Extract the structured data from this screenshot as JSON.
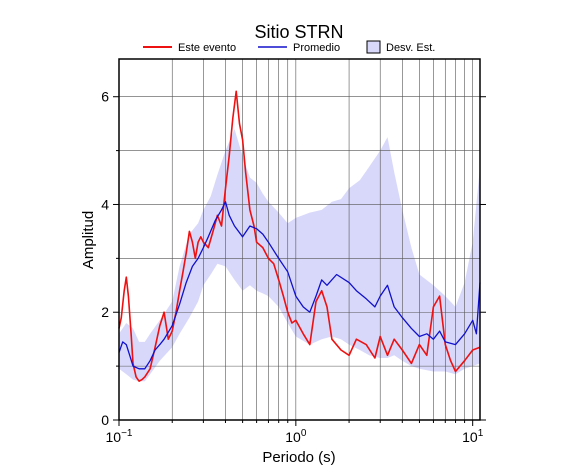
{
  "chart_data": {
    "type": "line",
    "title": "Sitio STRN",
    "xlabel": "Periodo (s)",
    "ylabel": "Amplitud",
    "x_scale": "log",
    "xlim": [
      0.1,
      11
    ],
    "ylim": [
      0,
      6.7
    ],
    "grid": true,
    "legend_position": "top",
    "x_ticks": [
      {
        "value": 0.1,
        "base": "10",
        "exp": "−1"
      },
      {
        "value": 1,
        "base": "10",
        "exp": "0"
      },
      {
        "value": 10,
        "base": "10",
        "exp": "1"
      }
    ],
    "y_ticks": [
      0,
      2,
      4,
      6
    ],
    "legend": {
      "este": "Este evento",
      "promedio": "Promedio",
      "desv": "Desv. Est."
    },
    "colors": {
      "este": "#ee1111",
      "promedio": "#1111cc",
      "desv_fill": "#d8d8fa",
      "grid": "#555555"
    },
    "series": [
      {
        "name": "Este evento",
        "x": [
          0.1,
          0.103,
          0.107,
          0.11,
          0.113,
          0.117,
          0.12,
          0.125,
          0.13,
          0.135,
          0.14,
          0.15,
          0.16,
          0.17,
          0.18,
          0.19,
          0.2,
          0.21,
          0.22,
          0.23,
          0.24,
          0.25,
          0.26,
          0.27,
          0.28,
          0.29,
          0.3,
          0.32,
          0.34,
          0.36,
          0.38,
          0.4,
          0.42,
          0.44,
          0.46,
          0.48,
          0.5,
          0.52,
          0.55,
          0.58,
          0.6,
          0.65,
          0.7,
          0.75,
          0.8,
          0.85,
          0.9,
          0.95,
          1.0,
          1.1,
          1.2,
          1.3,
          1.4,
          1.5,
          1.6,
          1.8,
          2.0,
          2.2,
          2.5,
          2.8,
          3.0,
          3.3,
          3.6,
          4.0,
          4.5,
          5.0,
          5.5,
          6.0,
          6.5,
          7.0,
          7.5,
          8.0,
          9.0,
          10.0,
          11.0
        ],
        "values": [
          1.7,
          1.9,
          2.4,
          2.65,
          2.3,
          1.6,
          1.05,
          0.8,
          0.72,
          0.75,
          0.8,
          0.95,
          1.35,
          1.75,
          2.0,
          1.5,
          1.65,
          2.0,
          2.4,
          2.75,
          3.1,
          3.5,
          3.3,
          3.0,
          3.3,
          3.4,
          3.3,
          3.2,
          3.5,
          3.8,
          3.6,
          4.3,
          4.9,
          5.6,
          6.1,
          5.5,
          5.2,
          4.6,
          3.9,
          3.6,
          3.3,
          3.2,
          3.0,
          2.9,
          2.6,
          2.3,
          2.0,
          1.8,
          1.85,
          1.6,
          1.4,
          2.2,
          2.4,
          2.1,
          1.5,
          1.3,
          1.2,
          1.5,
          1.4,
          1.15,
          1.55,
          1.2,
          1.5,
          1.3,
          1.05,
          1.4,
          1.2,
          2.1,
          2.3,
          1.4,
          1.1,
          0.9,
          1.1,
          1.3,
          1.35
        ]
      },
      {
        "name": "Promedio",
        "x": [
          0.1,
          0.105,
          0.11,
          0.115,
          0.12,
          0.13,
          0.14,
          0.15,
          0.16,
          0.17,
          0.18,
          0.2,
          0.22,
          0.24,
          0.26,
          0.28,
          0.3,
          0.32,
          0.35,
          0.38,
          0.4,
          0.42,
          0.45,
          0.5,
          0.55,
          0.6,
          0.65,
          0.7,
          0.8,
          0.9,
          1.0,
          1.1,
          1.2,
          1.3,
          1.4,
          1.5,
          1.7,
          2.0,
          2.2,
          2.5,
          2.8,
          3.0,
          3.3,
          3.6,
          4.0,
          4.5,
          5.0,
          5.5,
          6.0,
          6.5,
          7.0,
          8.0,
          9.0,
          10.0,
          10.5,
          11.0
        ],
        "values": [
          1.25,
          1.45,
          1.4,
          1.2,
          1.0,
          0.95,
          0.95,
          1.1,
          1.3,
          1.4,
          1.5,
          1.75,
          2.15,
          2.55,
          2.85,
          3.0,
          3.2,
          3.4,
          3.7,
          3.9,
          4.05,
          3.8,
          3.6,
          3.4,
          3.6,
          3.55,
          3.45,
          3.3,
          3.0,
          2.75,
          2.3,
          2.1,
          2.0,
          2.3,
          2.6,
          2.5,
          2.7,
          2.55,
          2.4,
          2.25,
          2.1,
          2.3,
          2.5,
          2.1,
          1.9,
          1.7,
          1.55,
          1.6,
          1.5,
          1.65,
          1.45,
          1.4,
          1.6,
          1.85,
          1.6,
          2.55
        ]
      }
    ],
    "band": {
      "name": "Desv. Est.",
      "x": [
        0.1,
        0.11,
        0.12,
        0.13,
        0.14,
        0.15,
        0.17,
        0.2,
        0.22,
        0.25,
        0.28,
        0.3,
        0.33,
        0.36,
        0.4,
        0.45,
        0.5,
        0.55,
        0.6,
        0.65,
        0.7,
        0.8,
        0.9,
        1.0,
        1.2,
        1.4,
        1.6,
        1.8,
        2.0,
        2.3,
        2.6,
        3.0,
        3.3,
        3.6,
        4.0,
        4.5,
        5.0,
        6.0,
        7.0,
        8.0,
        9.0,
        10.0,
        11.0
      ],
      "upper": [
        1.6,
        1.8,
        1.7,
        1.45,
        1.45,
        1.6,
        1.85,
        2.2,
        2.85,
        3.45,
        3.65,
        3.9,
        4.15,
        4.55,
        5.0,
        5.4,
        4.9,
        4.5,
        4.4,
        4.2,
        4.05,
        3.85,
        3.65,
        3.75,
        3.85,
        3.9,
        4.05,
        4.1,
        4.3,
        4.45,
        4.7,
        5.0,
        5.25,
        4.6,
        3.9,
        3.2,
        2.7,
        2.5,
        2.3,
        2.1,
        2.55,
        3.3,
        4.7
      ],
      "lower": [
        0.95,
        0.85,
        0.75,
        0.72,
        0.72,
        0.85,
        1.1,
        1.35,
        1.6,
        1.9,
        2.2,
        2.5,
        2.7,
        2.9,
        2.85,
        2.6,
        2.4,
        2.5,
        2.4,
        2.35,
        2.3,
        2.1,
        1.8,
        1.55,
        1.4,
        1.5,
        1.55,
        1.5,
        1.4,
        1.3,
        1.2,
        1.15,
        1.15,
        1.2,
        1.1,
        1.0,
        0.95,
        0.9,
        0.9,
        0.85,
        0.95,
        1.0,
        1.05
      ]
    }
  }
}
